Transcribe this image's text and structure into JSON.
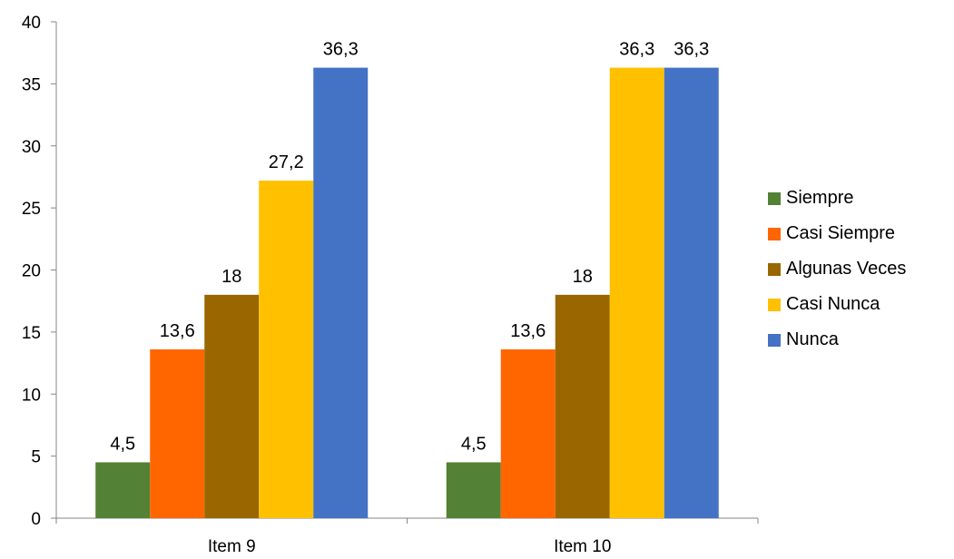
{
  "chart_data": {
    "type": "bar",
    "title": "",
    "xlabel": "",
    "ylabel": "",
    "categories": [
      "Item 9",
      "Item 10"
    ],
    "ylim": [
      0,
      40
    ],
    "yticks": [
      0,
      5,
      10,
      15,
      20,
      25,
      30,
      35,
      40
    ],
    "grid": false,
    "legend_position": "right",
    "series": [
      {
        "name": "Siempre",
        "color": "#538135",
        "values": [
          4.5,
          4.5
        ],
        "labels": [
          "4,5",
          "4,5"
        ]
      },
      {
        "name": "Casi Siempre",
        "color": "#FF6600",
        "values": [
          13.6,
          13.6
        ],
        "labels": [
          "13,6",
          "13,6"
        ]
      },
      {
        "name": "Algunas Veces",
        "color": "#996600",
        "values": [
          18,
          18
        ],
        "labels": [
          "18",
          "18"
        ]
      },
      {
        "name": "Casi Nunca",
        "color": "#FFC000",
        "values": [
          27.2,
          36.3
        ],
        "labels": [
          "27,2",
          "36,3"
        ]
      },
      {
        "name": "Nunca",
        "color": "#4472C4",
        "values": [
          36.3,
          36.3
        ],
        "labels": [
          "36,3",
          "36,3"
        ]
      }
    ]
  }
}
